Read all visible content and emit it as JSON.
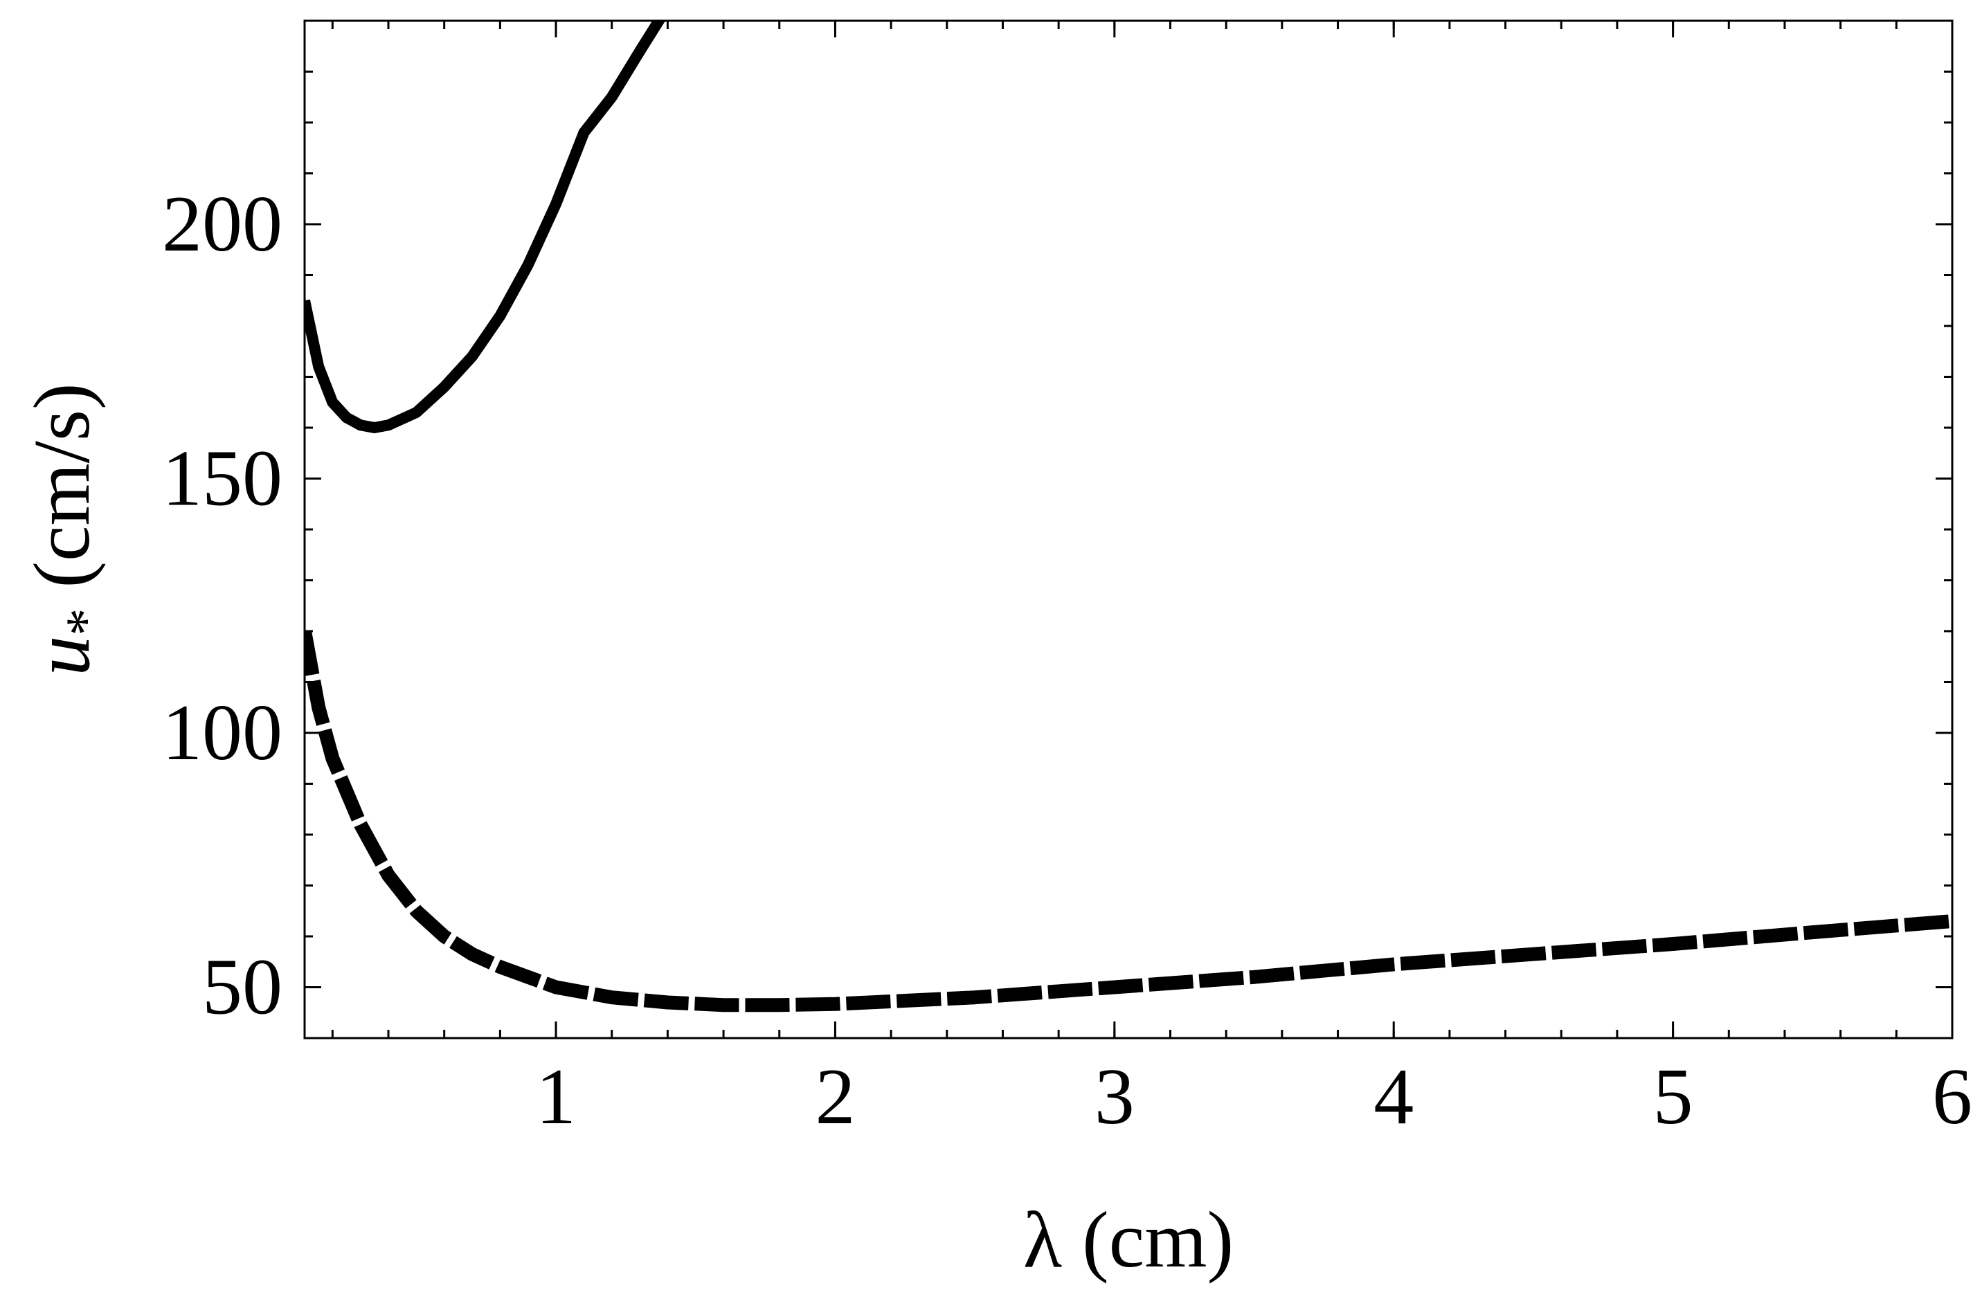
{
  "chart_data": {
    "type": "line",
    "title": "",
    "xlabel": "λ (cm)",
    "ylabel_symbol": "u",
    "ylabel_subscript": "*",
    "ylabel_unit": "(cm/s)",
    "xlim": [
      0.1,
      6
    ],
    "ylim": [
      40,
      240
    ],
    "xticks": [
      1,
      2,
      3,
      4,
      5,
      6
    ],
    "yticks": [
      50,
      100,
      150,
      200
    ],
    "xminor_step": 0.2,
    "yminor_step": 10,
    "grid": false,
    "legend": "none",
    "series": [
      {
        "style": "solid",
        "color": "#000000",
        "x": [
          0.1,
          0.15,
          0.2,
          0.25,
          0.3,
          0.35,
          0.4,
          0.5,
          0.6,
          0.7,
          0.8,
          0.9,
          1.0,
          1.1,
          1.2,
          1.3,
          1.38
        ],
        "y": [
          185,
          172,
          165,
          162,
          160.5,
          160,
          160.5,
          163,
          168,
          174,
          182,
          192,
          204,
          218,
          225,
          234,
          241
        ]
      },
      {
        "style": "dashed",
        "color": "#000000",
        "x": [
          0.1,
          0.15,
          0.2,
          0.3,
          0.4,
          0.5,
          0.6,
          0.7,
          0.8,
          1.0,
          1.2,
          1.4,
          1.6,
          1.8,
          2.0,
          2.5,
          3.0,
          3.5,
          4.0,
          4.5,
          5.0,
          5.5,
          6.0
        ],
        "y": [
          120,
          105,
          95,
          82,
          72,
          65,
          60,
          56.5,
          54,
          50,
          48,
          47,
          46.5,
          46.5,
          46.7,
          48,
          50,
          52,
          54.5,
          56.5,
          58.5,
          60.8,
          63
        ]
      }
    ]
  }
}
